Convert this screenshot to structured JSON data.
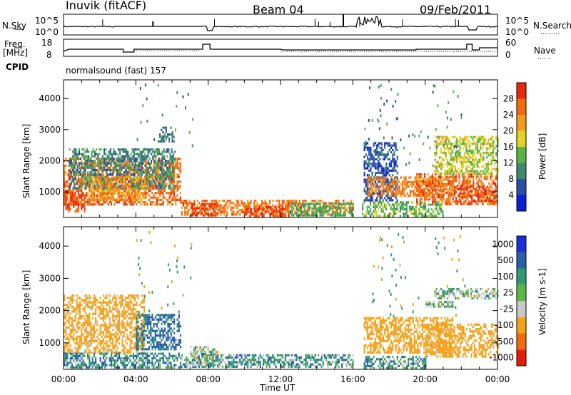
{
  "header": {
    "station": "Inuvik (fitACF)",
    "beam": "Beam 04",
    "date": "09/Feb/2011"
  },
  "top_panel": {
    "left_label": "N.Sky",
    "left_ticks": [
      "10^5",
      "10^0"
    ],
    "right_label": "N.Search",
    "right_ticks": [
      "10^5",
      "10^0"
    ]
  },
  "freq_panel": {
    "left_label_1": "Freq.",
    "left_label_2": "[MHz]",
    "left_ticks": [
      "18",
      "8"
    ],
    "cpid_label": "CPID",
    "right_label": "Nave",
    "right_ticks": [
      "60",
      "0"
    ]
  },
  "cpid_text": "normalsound (fast) 157",
  "x_axis": {
    "label": "Time UT",
    "ticks": [
      "00:00",
      "04:00",
      "08:00",
      "12:00",
      "16:00",
      "20:00",
      "00:00"
    ]
  },
  "colors": {
    "power": [
      "#0a1fd8",
      "#2b4fa8",
      "#3f8a6a",
      "#58b548",
      "#e6d21e",
      "#f39a1a",
      "#f06a10",
      "#e82a0a"
    ],
    "velocity": [
      "#e81a0a",
      "#f06a10",
      "#f4a21a",
      "#c8c8c8",
      "#5cb845",
      "#2f9a75",
      "#2a5fa8",
      "#1a2fd8"
    ]
  },
  "chart_data": [
    {
      "type": "heatmap",
      "name": "power",
      "ylabel": "Slant Range [km]",
      "xlabel": "",
      "x_range_hours": [
        0,
        24
      ],
      "ylim": [
        180,
        4600
      ],
      "y_ticks": [
        "1000",
        "2000",
        "3000",
        "4000"
      ],
      "colorbar": {
        "label": "Power [dB]",
        "ticks": [
          "4",
          "8",
          "12",
          "16",
          "20",
          "24",
          "28"
        ],
        "range": [
          0,
          32
        ]
      },
      "regions": [
        {
          "t0": 0.0,
          "t1": 6.5,
          "r0": 600,
          "r1": 2100,
          "value": 26
        },
        {
          "t0": 0.0,
          "t1": 1.2,
          "r0": 350,
          "r1": 1000,
          "value": 28
        },
        {
          "t0": 0.3,
          "t1": 6.2,
          "r0": 1100,
          "r1": 2400,
          "value": 10
        },
        {
          "t0": 1.5,
          "t1": 4.5,
          "r0": 700,
          "r1": 1500,
          "value": 22
        },
        {
          "t0": 5.2,
          "t1": 6.1,
          "r0": 2600,
          "r1": 3100,
          "value": 8
        },
        {
          "t0": 6.5,
          "t1": 16.0,
          "r0": 250,
          "r1": 750,
          "value": 25
        },
        {
          "t0": 7.0,
          "t1": 8.5,
          "r0": 250,
          "r1": 650,
          "value": 29
        },
        {
          "t0": 10.0,
          "t1": 12.5,
          "r0": 250,
          "r1": 550,
          "value": 28
        },
        {
          "t0": 12.5,
          "t1": 16.0,
          "r0": 250,
          "r1": 650,
          "value": 12
        },
        {
          "t0": 16.5,
          "t1": 21.0,
          "r0": 200,
          "r1": 700,
          "value": 14
        },
        {
          "t0": 16.6,
          "t1": 18.5,
          "r0": 700,
          "r1": 2600,
          "value": 6
        },
        {
          "t0": 16.8,
          "t1": 21.5,
          "r0": 900,
          "r1": 1500,
          "value": 24
        },
        {
          "t0": 19.5,
          "t1": 24.0,
          "r0": 600,
          "r1": 1600,
          "value": 26
        },
        {
          "t0": 21.5,
          "t1": 24.0,
          "r0": 700,
          "r1": 1200,
          "value": 29
        },
        {
          "t0": 20.5,
          "t1": 24.0,
          "r0": 1600,
          "r1": 2800,
          "value": 17
        }
      ]
    },
    {
      "type": "heatmap",
      "name": "velocity",
      "ylabel": "Slant Range [km]",
      "xlabel": "Time UT",
      "x_range_hours": [
        0,
        24
      ],
      "ylim": [
        180,
        4600
      ],
      "y_ticks": [
        "1000",
        "2000",
        "3000",
        "4000"
      ],
      "colorbar": {
        "label": "Velocity [m s-1]",
        "ticks": [
          "-1000",
          "-500",
          "-100",
          "-25",
          "25",
          "100",
          "500",
          "1000"
        ]
      },
      "regions": [
        {
          "t0": 0.0,
          "t1": 4.5,
          "r0": 700,
          "r1": 2500,
          "value": -200
        },
        {
          "t0": 4.0,
          "t1": 6.5,
          "r0": 800,
          "r1": 1900,
          "value": 150
        },
        {
          "t0": 0.0,
          "t1": 6.5,
          "r0": 250,
          "r1": 700,
          "value": 80
        },
        {
          "t0": 6.5,
          "t1": 16.0,
          "r0": 250,
          "r1": 650,
          "value": 60
        },
        {
          "t0": 7.0,
          "t1": 8.5,
          "r0": 300,
          "r1": 900,
          "value": 0
        },
        {
          "t0": 16.6,
          "t1": 21.5,
          "r0": 700,
          "r1": 1800,
          "value": -300
        },
        {
          "t0": 20.0,
          "t1": 24.0,
          "r0": 600,
          "r1": 1600,
          "value": -200
        },
        {
          "t0": 20.5,
          "t1": 24.0,
          "r0": 2400,
          "r1": 2700,
          "value": 0
        },
        {
          "t0": 16.6,
          "t1": 20.0,
          "r0": 200,
          "r1": 600,
          "value": 60
        },
        {
          "t0": 20.0,
          "t1": 21.5,
          "r0": 2100,
          "r1": 2300,
          "value": 0
        }
      ]
    }
  ]
}
